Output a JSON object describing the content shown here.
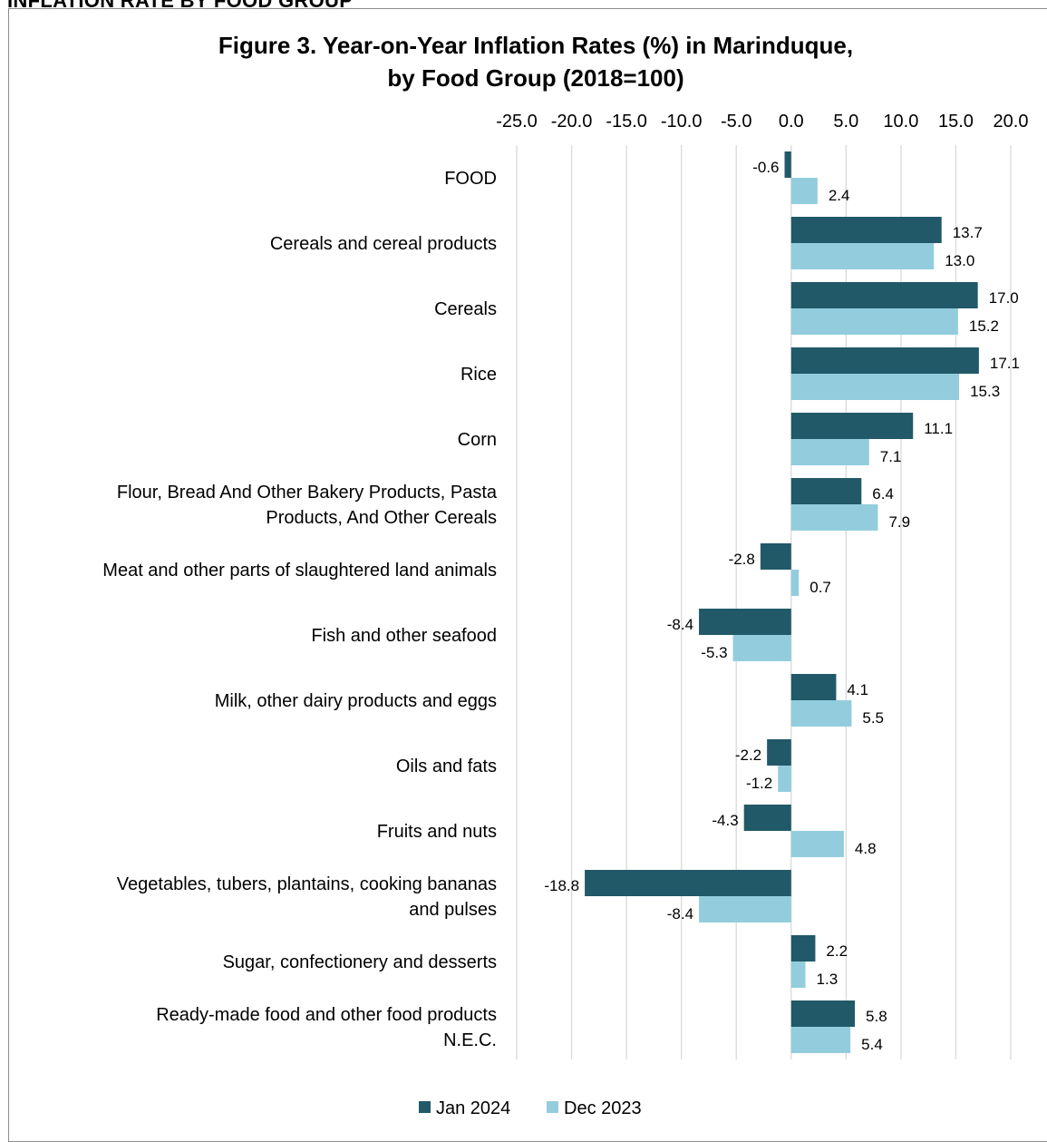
{
  "section_heading": "INFLATION RATE BY FOOD GROUP",
  "chart_data": {
    "type": "bar",
    "orientation": "horizontal",
    "title_lines": [
      "Figure 3. Year-on-Year Inflation Rates (%) in Marinduque,",
      "by Food Group (2018=100)"
    ],
    "xlim": [
      -25,
      20
    ],
    "x_ticks": [
      -25,
      -20,
      -15,
      -10,
      -5,
      0,
      5,
      10,
      15,
      20
    ],
    "x_tick_labels": [
      "-25.0",
      "-20.0",
      "-15.0",
      "-10.0",
      "-5.0",
      "0.0",
      "5.0",
      "10.0",
      "15.0",
      "20.0"
    ],
    "grid": true,
    "legend_position": "bottom",
    "categories": [
      [
        "FOOD"
      ],
      [
        "Cereals and cereal products"
      ],
      [
        "Cereals"
      ],
      [
        "Rice"
      ],
      [
        "Corn "
      ],
      [
        "Flour, Bread And Other Bakery Products, Pasta",
        "Products, And Other Cereals"
      ],
      [
        "Meat and other parts of slaughtered land animals"
      ],
      [
        "Fish and other seafood"
      ],
      [
        "Milk, other dairy products and eggs"
      ],
      [
        "Oils and fats"
      ],
      [
        "Fruits and nuts"
      ],
      [
        "Vegetables, tubers, plantains, cooking bananas",
        "and pulses"
      ],
      [
        "Sugar, confectionery and desserts"
      ],
      [
        "Ready-made food and other food products",
        "N.E.C."
      ]
    ],
    "series": [
      {
        "name": "Jan 2024",
        "color": "#215968",
        "values": [
          -0.6,
          13.7,
          17.0,
          17.1,
          11.1,
          6.4,
          -2.8,
          -8.4,
          4.1,
          -2.2,
          -4.3,
          -18.8,
          2.2,
          5.8
        ],
        "labels": [
          "-0.6",
          "13.7",
          "17.0",
          "17.1",
          "11.1",
          "6.4",
          "-2.8",
          "-8.4",
          "4.1",
          "-2.2",
          "-4.3",
          "-18.8",
          "2.2",
          "5.8"
        ]
      },
      {
        "name": "Dec 2023",
        "color": "#93cddd",
        "values": [
          2.4,
          13.0,
          15.2,
          15.3,
          7.1,
          7.9,
          0.7,
          -5.3,
          5.5,
          -1.2,
          4.8,
          -8.4,
          1.3,
          5.4
        ],
        "labels": [
          "2.4",
          "13.0",
          "15.2",
          "15.3",
          "7.1",
          "7.9",
          "0.7",
          "-5.3",
          "5.5",
          "-1.2",
          "4.8",
          "-8.4",
          "1.3",
          "5.4"
        ]
      }
    ]
  },
  "colors": {
    "gridline": "#d9d9d9",
    "frame": "#8c8c8c"
  }
}
